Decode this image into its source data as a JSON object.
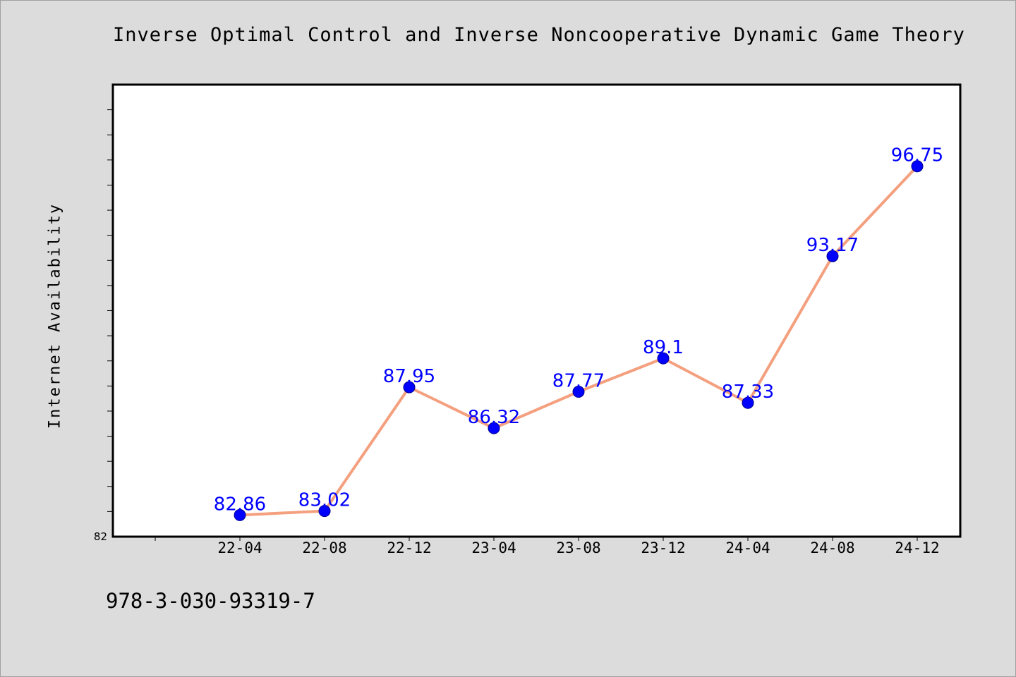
{
  "title": "Inverse Optimal Control and Inverse Noncooperative Dynamic Game Theory",
  "footer": "978-3-030-93319-7",
  "colors": {
    "background": "#dcdcdc",
    "plot_background": "#ffffff",
    "line": "#f4a07f",
    "marker": "#0000ff",
    "data_label": "#0000ff"
  },
  "chart_data": {
    "type": "line",
    "title": "Inverse Optimal Control and Inverse Noncooperative Dynamic Game Theory",
    "xlabel": "",
    "ylabel": "Internet Availability",
    "categories": [
      "22-04",
      "22-08",
      "22-12",
      "23-04",
      "23-08",
      "23-12",
      "24-04",
      "24-08",
      "24-12"
    ],
    "values": [
      82.86,
      83.02,
      87.95,
      86.32,
      87.77,
      89.1,
      87.33,
      93.17,
      96.75
    ],
    "data_labels": [
      "82.86",
      "83.02",
      "87.95",
      "86.32",
      "87.77",
      "89.1",
      "87.33",
      "93.17",
      "96.75"
    ],
    "ylim": [
      82,
      100
    ],
    "ytick_labels": [
      "82"
    ],
    "grid": false,
    "legend": "none"
  }
}
